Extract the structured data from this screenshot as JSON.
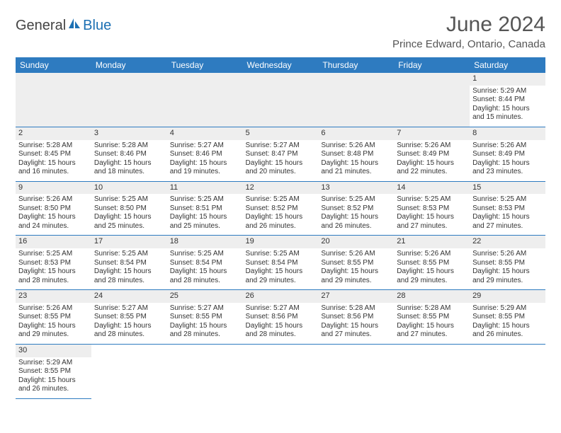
{
  "logo": {
    "text1": "General",
    "text2": "Blue"
  },
  "title": "June 2024",
  "location": "Prince Edward, Ontario, Canada",
  "colors": {
    "header_bg": "#2e7bc0",
    "header_text": "#ffffff",
    "daynum_bg": "#eeeeee",
    "border": "#2e7bc0",
    "text": "#333333",
    "logo_gray": "#444444",
    "logo_blue": "#1b6fb3"
  },
  "daysOfWeek": [
    "Sunday",
    "Monday",
    "Tuesday",
    "Wednesday",
    "Thursday",
    "Friday",
    "Saturday"
  ],
  "weeks": [
    [
      null,
      null,
      null,
      null,
      null,
      null,
      {
        "n": "1",
        "sunrise": "5:29 AM",
        "sunset": "8:44 PM",
        "daylight": "15 hours and 15 minutes."
      }
    ],
    [
      {
        "n": "2",
        "sunrise": "5:28 AM",
        "sunset": "8:45 PM",
        "daylight": "15 hours and 16 minutes."
      },
      {
        "n": "3",
        "sunrise": "5:28 AM",
        "sunset": "8:46 PM",
        "daylight": "15 hours and 18 minutes."
      },
      {
        "n": "4",
        "sunrise": "5:27 AM",
        "sunset": "8:46 PM",
        "daylight": "15 hours and 19 minutes."
      },
      {
        "n": "5",
        "sunrise": "5:27 AM",
        "sunset": "8:47 PM",
        "daylight": "15 hours and 20 minutes."
      },
      {
        "n": "6",
        "sunrise": "5:26 AM",
        "sunset": "8:48 PM",
        "daylight": "15 hours and 21 minutes."
      },
      {
        "n": "7",
        "sunrise": "5:26 AM",
        "sunset": "8:49 PM",
        "daylight": "15 hours and 22 minutes."
      },
      {
        "n": "8",
        "sunrise": "5:26 AM",
        "sunset": "8:49 PM",
        "daylight": "15 hours and 23 minutes."
      }
    ],
    [
      {
        "n": "9",
        "sunrise": "5:26 AM",
        "sunset": "8:50 PM",
        "daylight": "15 hours and 24 minutes."
      },
      {
        "n": "10",
        "sunrise": "5:25 AM",
        "sunset": "8:50 PM",
        "daylight": "15 hours and 25 minutes."
      },
      {
        "n": "11",
        "sunrise": "5:25 AM",
        "sunset": "8:51 PM",
        "daylight": "15 hours and 25 minutes."
      },
      {
        "n": "12",
        "sunrise": "5:25 AM",
        "sunset": "8:52 PM",
        "daylight": "15 hours and 26 minutes."
      },
      {
        "n": "13",
        "sunrise": "5:25 AM",
        "sunset": "8:52 PM",
        "daylight": "15 hours and 26 minutes."
      },
      {
        "n": "14",
        "sunrise": "5:25 AM",
        "sunset": "8:53 PM",
        "daylight": "15 hours and 27 minutes."
      },
      {
        "n": "15",
        "sunrise": "5:25 AM",
        "sunset": "8:53 PM",
        "daylight": "15 hours and 27 minutes."
      }
    ],
    [
      {
        "n": "16",
        "sunrise": "5:25 AM",
        "sunset": "8:53 PM",
        "daylight": "15 hours and 28 minutes."
      },
      {
        "n": "17",
        "sunrise": "5:25 AM",
        "sunset": "8:54 PM",
        "daylight": "15 hours and 28 minutes."
      },
      {
        "n": "18",
        "sunrise": "5:25 AM",
        "sunset": "8:54 PM",
        "daylight": "15 hours and 28 minutes."
      },
      {
        "n": "19",
        "sunrise": "5:25 AM",
        "sunset": "8:54 PM",
        "daylight": "15 hours and 29 minutes."
      },
      {
        "n": "20",
        "sunrise": "5:26 AM",
        "sunset": "8:55 PM",
        "daylight": "15 hours and 29 minutes."
      },
      {
        "n": "21",
        "sunrise": "5:26 AM",
        "sunset": "8:55 PM",
        "daylight": "15 hours and 29 minutes."
      },
      {
        "n": "22",
        "sunrise": "5:26 AM",
        "sunset": "8:55 PM",
        "daylight": "15 hours and 29 minutes."
      }
    ],
    [
      {
        "n": "23",
        "sunrise": "5:26 AM",
        "sunset": "8:55 PM",
        "daylight": "15 hours and 29 minutes."
      },
      {
        "n": "24",
        "sunrise": "5:27 AM",
        "sunset": "8:55 PM",
        "daylight": "15 hours and 28 minutes."
      },
      {
        "n": "25",
        "sunrise": "5:27 AM",
        "sunset": "8:55 PM",
        "daylight": "15 hours and 28 minutes."
      },
      {
        "n": "26",
        "sunrise": "5:27 AM",
        "sunset": "8:56 PM",
        "daylight": "15 hours and 28 minutes."
      },
      {
        "n": "27",
        "sunrise": "5:28 AM",
        "sunset": "8:56 PM",
        "daylight": "15 hours and 27 minutes."
      },
      {
        "n": "28",
        "sunrise": "5:28 AM",
        "sunset": "8:55 PM",
        "daylight": "15 hours and 27 minutes."
      },
      {
        "n": "29",
        "sunrise": "5:29 AM",
        "sunset": "8:55 PM",
        "daylight": "15 hours and 26 minutes."
      }
    ],
    [
      {
        "n": "30",
        "sunrise": "5:29 AM",
        "sunset": "8:55 PM",
        "daylight": "15 hours and 26 minutes."
      },
      null,
      null,
      null,
      null,
      null,
      null
    ]
  ],
  "labels": {
    "sunrise": "Sunrise:",
    "sunset": "Sunset:",
    "daylight": "Daylight:"
  }
}
